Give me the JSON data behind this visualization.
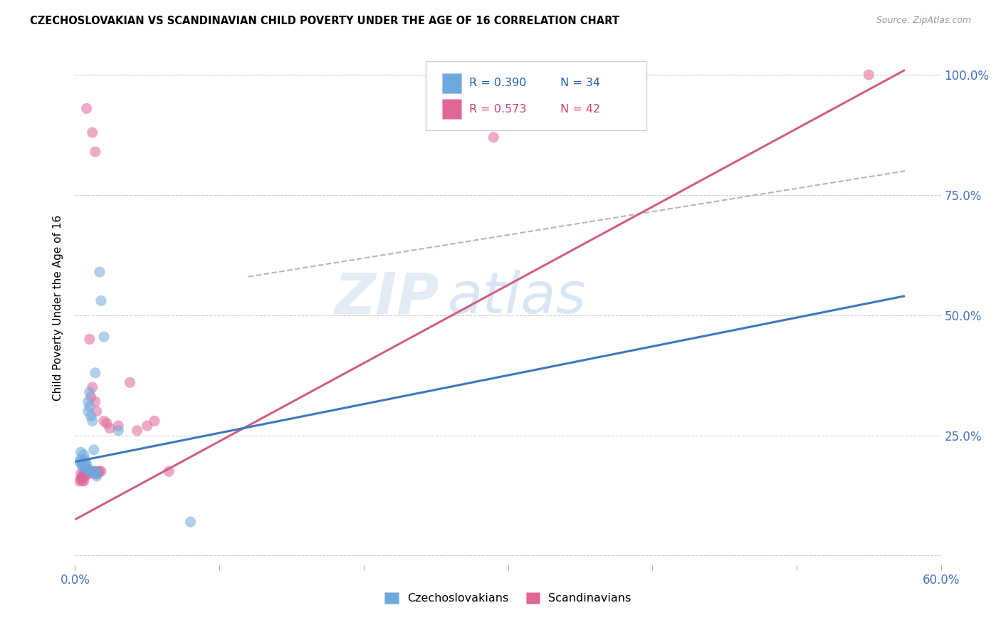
{
  "title": "CZECHOSLOVAKIAN VS SCANDINAVIAN CHILD POVERTY UNDER THE AGE OF 16 CORRELATION CHART",
  "source": "Source: ZipAtlas.com",
  "ylabel": "Child Poverty Under the Age of 16",
  "xlim": [
    0.0,
    0.6
  ],
  "ylim": [
    -0.02,
    1.05
  ],
  "yticks": [
    0.0,
    0.25,
    0.5,
    0.75,
    1.0
  ],
  "ytick_labels": [
    "",
    "25.0%",
    "50.0%",
    "75.0%",
    "100.0%"
  ],
  "xticks": [
    0.0,
    0.1,
    0.2,
    0.3,
    0.4,
    0.5,
    0.6
  ],
  "color_czech": "#6fa8dc",
  "color_scand": "#e06699",
  "color_czech_line": "#3d78c0",
  "color_scand_line": "#d06080",
  "color_dash": "#b0b8c0",
  "watermark_zip": "ZIP",
  "watermark_atlas": "atlas",
  "czech_points": [
    [
      0.003,
      0.195
    ],
    [
      0.004,
      0.2
    ],
    [
      0.004,
      0.215
    ],
    [
      0.005,
      0.19
    ],
    [
      0.005,
      0.195
    ],
    [
      0.005,
      0.185
    ],
    [
      0.006,
      0.185
    ],
    [
      0.006,
      0.19
    ],
    [
      0.006,
      0.21
    ],
    [
      0.007,
      0.195
    ],
    [
      0.007,
      0.2
    ],
    [
      0.007,
      0.185
    ],
    [
      0.008,
      0.18
    ],
    [
      0.008,
      0.19
    ],
    [
      0.009,
      0.3
    ],
    [
      0.009,
      0.32
    ],
    [
      0.01,
      0.31
    ],
    [
      0.01,
      0.34
    ],
    [
      0.01,
      0.175
    ],
    [
      0.011,
      0.29
    ],
    [
      0.011,
      0.175
    ],
    [
      0.012,
      0.28
    ],
    [
      0.012,
      0.175
    ],
    [
      0.013,
      0.175
    ],
    [
      0.013,
      0.22
    ],
    [
      0.014,
      0.175
    ],
    [
      0.014,
      0.38
    ],
    [
      0.015,
      0.17
    ],
    [
      0.015,
      0.165
    ],
    [
      0.017,
      0.59
    ],
    [
      0.018,
      0.53
    ],
    [
      0.02,
      0.455
    ],
    [
      0.03,
      0.26
    ],
    [
      0.08,
      0.07
    ]
  ],
  "scand_points": [
    [
      0.003,
      0.155
    ],
    [
      0.004,
      0.16
    ],
    [
      0.004,
      0.17
    ],
    [
      0.005,
      0.155
    ],
    [
      0.005,
      0.16
    ],
    [
      0.005,
      0.165
    ],
    [
      0.006,
      0.155
    ],
    [
      0.006,
      0.17
    ],
    [
      0.007,
      0.165
    ],
    [
      0.007,
      0.175
    ],
    [
      0.008,
      0.17
    ],
    [
      0.008,
      0.175
    ],
    [
      0.009,
      0.17
    ],
    [
      0.009,
      0.18
    ],
    [
      0.01,
      0.175
    ],
    [
      0.01,
      0.45
    ],
    [
      0.011,
      0.175
    ],
    [
      0.011,
      0.33
    ],
    [
      0.012,
      0.175
    ],
    [
      0.012,
      0.35
    ],
    [
      0.013,
      0.17
    ],
    [
      0.014,
      0.175
    ],
    [
      0.014,
      0.32
    ],
    [
      0.015,
      0.17
    ],
    [
      0.015,
      0.3
    ],
    [
      0.016,
      0.175
    ],
    [
      0.017,
      0.175
    ],
    [
      0.018,
      0.175
    ],
    [
      0.02,
      0.28
    ],
    [
      0.022,
      0.275
    ],
    [
      0.024,
      0.265
    ],
    [
      0.03,
      0.27
    ],
    [
      0.038,
      0.36
    ],
    [
      0.043,
      0.26
    ],
    [
      0.05,
      0.27
    ],
    [
      0.055,
      0.28
    ],
    [
      0.065,
      0.175
    ],
    [
      0.008,
      0.93
    ],
    [
      0.012,
      0.88
    ],
    [
      0.014,
      0.84
    ],
    [
      0.29,
      0.87
    ],
    [
      0.55,
      1.0
    ]
  ],
  "czech_line_x": [
    0.0,
    0.575
  ],
  "czech_line_y": [
    0.195,
    0.54
  ],
  "scand_line_x": [
    0.0,
    0.575
  ],
  "scand_line_y": [
    0.075,
    1.01
  ],
  "dash_line_x": [
    0.12,
    0.575
  ],
  "dash_line_y": [
    0.58,
    0.8
  ]
}
